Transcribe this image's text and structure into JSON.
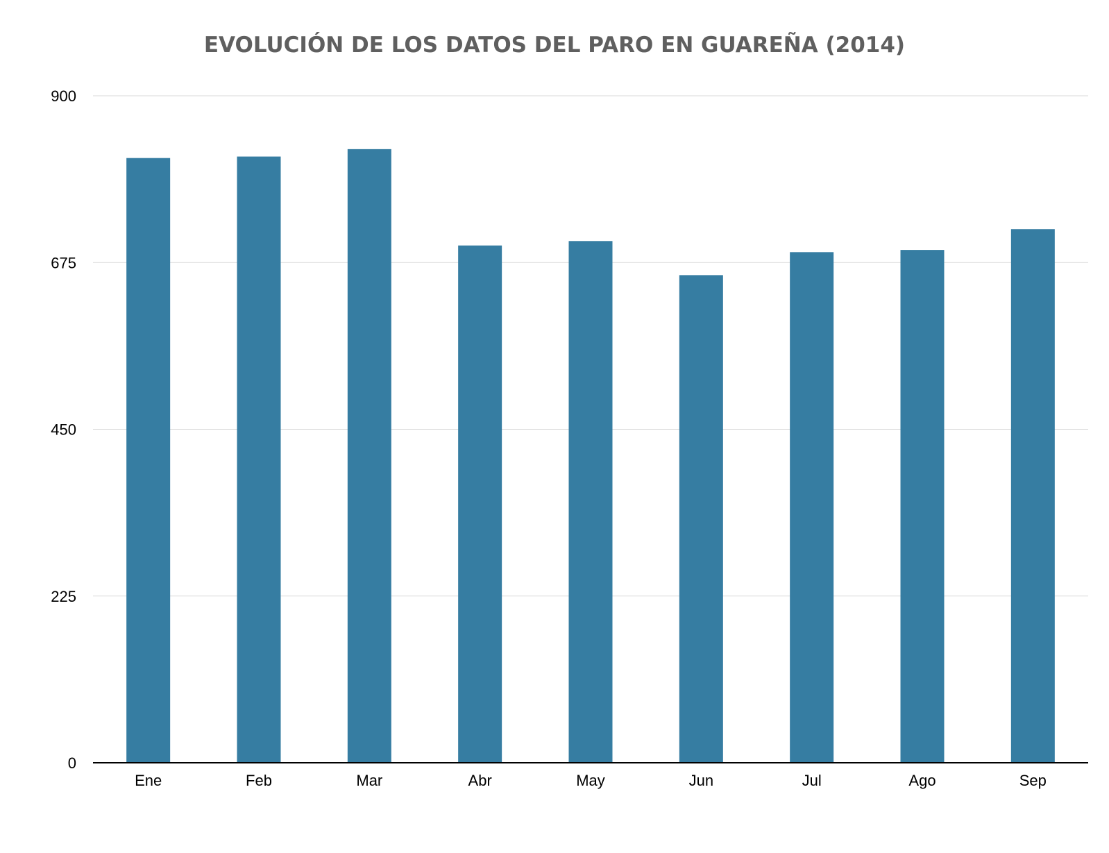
{
  "chart_data": {
    "type": "bar",
    "title": "EVOLUCIÓN DE LOS DATOS DEL PARO EN GUAREÑA (2014)",
    "xlabel": "",
    "ylabel": "",
    "categories": [
      "Ene",
      "Feb",
      "Mar",
      "Abr",
      "May",
      "Jun",
      "Jul",
      "Ago",
      "Sep"
    ],
    "values": [
      816,
      818,
      828,
      698,
      704,
      658,
      689,
      692,
      720
    ],
    "ylim": [
      0,
      900
    ],
    "yticks": [
      "0",
      "225",
      "450",
      "675",
      "900"
    ],
    "ytick_values": [
      0,
      225,
      450,
      675,
      900
    ],
    "grid": true,
    "legend": "none",
    "bar_color": "#367da2"
  }
}
